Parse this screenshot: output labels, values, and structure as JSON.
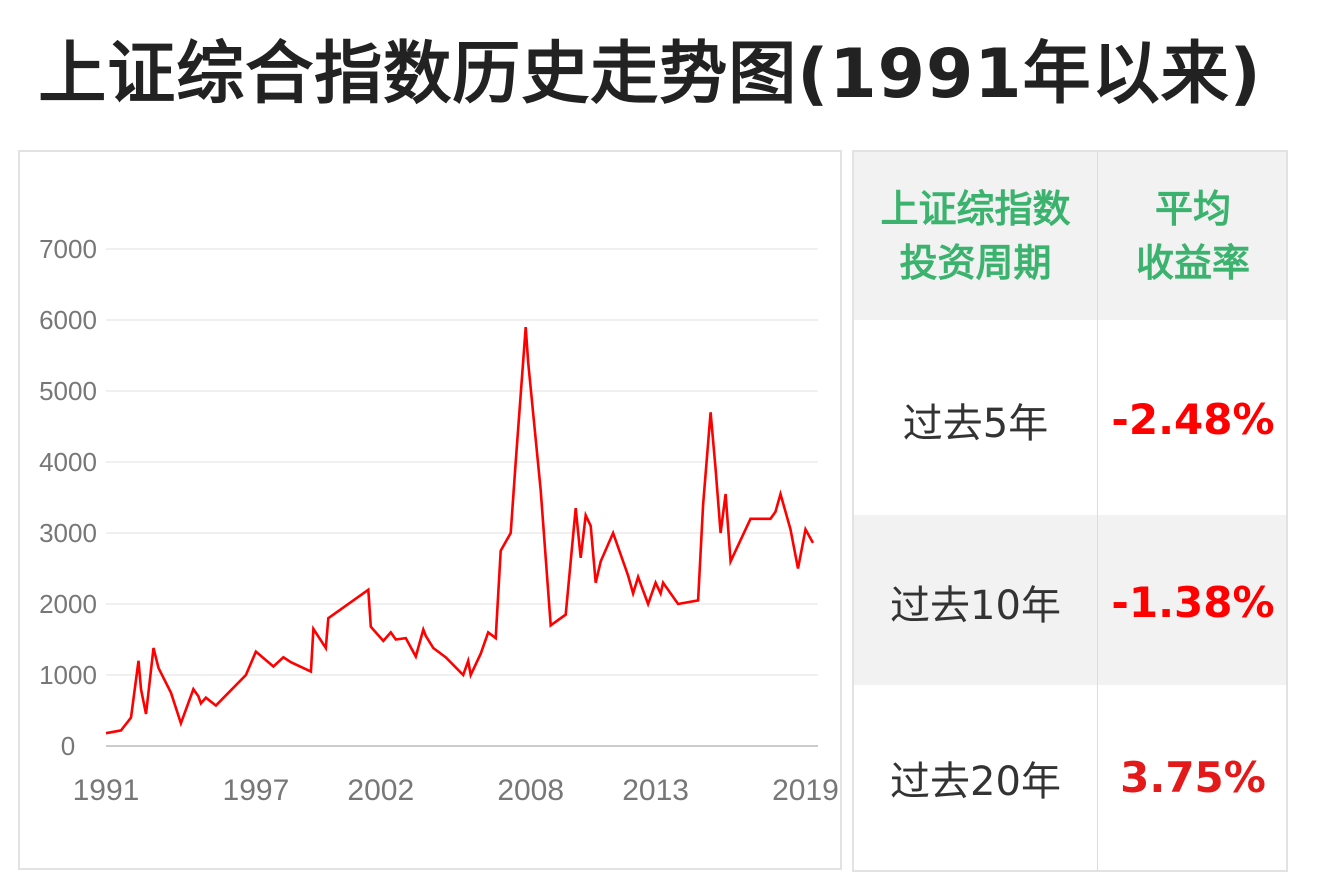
{
  "title": "上证综合指数历史走势图(1991年以来)",
  "colors": {
    "line": "#ff0000",
    "header_text": "#3bb36f",
    "negative": "#ff0000",
    "positive": "#e41a1a",
    "grid": "#ececec",
    "axis_text": "#777777"
  },
  "table": {
    "header": {
      "col1": "上证综指数\n投资周期",
      "col2": "平均\n收益率"
    },
    "rows": [
      {
        "period": "过去5年",
        "return": "-2.48%"
      },
      {
        "period": "过去10年",
        "return": "-1.38%"
      },
      {
        "period": "过去20年",
        "return": "3.75%"
      }
    ]
  },
  "chart_data": {
    "type": "line",
    "title": "",
    "xlabel": "",
    "ylabel": "",
    "xlim": [
      1991.0,
      2019.5
    ],
    "ylim": [
      0,
      7000
    ],
    "yticks": [
      0,
      1000,
      2000,
      3000,
      4000,
      5000,
      6000,
      7000
    ],
    "xticks": [
      {
        "label": "1991",
        "x": 1991.0
      },
      {
        "label": "1997",
        "x": 1997.0
      },
      {
        "label": "2002",
        "x": 2002.0
      },
      {
        "label": "2008",
        "x": 2008.0
      },
      {
        "label": "2013",
        "x": 2013.0
      },
      {
        "label": "2019",
        "x": 2019.0
      }
    ],
    "grid": true,
    "series": [
      {
        "x": [
          1991.0,
          1991.6,
          1992.0,
          1992.3,
          1992.4,
          1992.6,
          1992.9,
          1993.1,
          1993.6,
          1994.0,
          1994.5,
          1994.7,
          1994.8,
          1995.0,
          1995.4,
          1995.9,
          1996.6,
          1997.0,
          1997.7,
          1998.1,
          1998.4,
          1999.2,
          1999.3,
          1999.8,
          1999.9,
          2001.5,
          2001.6,
          2002.1,
          2002.4,
          2002.6,
          2003.0,
          2003.4,
          2003.7,
          2003.8,
          2004.1,
          2004.6,
          2005.3,
          2005.5,
          2005.6,
          2006.0,
          2006.3,
          2006.6,
          2006.8,
          2007.2,
          2007.4,
          2007.8,
          2007.9,
          2008.4,
          2008.8,
          2009.4,
          2009.8,
          2010.0,
          2010.2,
          2010.4,
          2010.6,
          2010.8,
          2011.3,
          2011.9,
          2012.1,
          2012.3,
          2012.7,
          2013.0,
          2013.2,
          2013.3,
          2013.9,
          2014.7,
          2014.9,
          2015.2,
          2015.4,
          2015.6,
          2015.8,
          2016.0,
          2016.8,
          2017.6,
          2017.8,
          2018.0,
          2018.4,
          2018.7,
          2019.0,
          2019.3
        ],
        "values": [
          180,
          220,
          400,
          1200,
          800,
          450,
          1380,
          1100,
          750,
          320,
          800,
          700,
          600,
          680,
          570,
          750,
          1000,
          1330,
          1120,
          1250,
          1180,
          1050,
          1650,
          1380,
          1800,
          2200,
          1680,
          1480,
          1600,
          1500,
          1520,
          1260,
          1640,
          1550,
          1380,
          1250,
          1000,
          1200,
          1000,
          1300,
          1600,
          1520,
          2750,
          3000,
          4000,
          5900,
          5400,
          3600,
          1700,
          1850,
          3350,
          2650,
          3250,
          3100,
          2300,
          2600,
          3000,
          2400,
          2150,
          2380,
          2000,
          2300,
          2150,
          2300,
          2000,
          2050,
          3400,
          4700,
          3900,
          3000,
          3550,
          2600,
          3200,
          3200,
          3300,
          3550,
          3050,
          2500,
          3050,
          2860
        ]
      }
    ]
  }
}
